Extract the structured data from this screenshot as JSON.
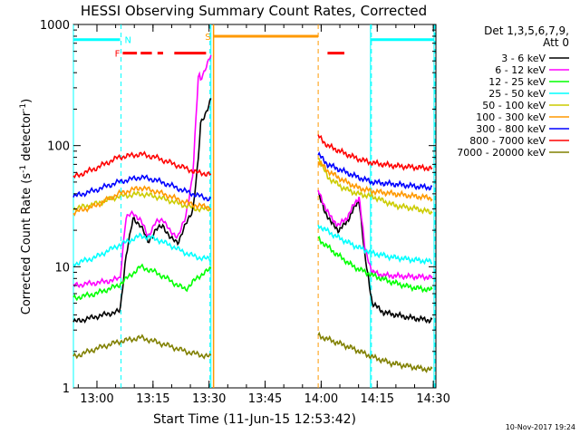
{
  "chart_data": {
    "type": "line",
    "title": "HESSI Observing Summary Count Rates, Corrected",
    "xlabel": "Start Time (11-Jun-15 12:53:42)",
    "ylabel": "Corrected Count Rate (s⁻¹ detector⁻¹)",
    "ylabel_main": "Corrected Count Rate (s",
    "ylabel_sup1": "-1",
    "ylabel_mid": " detector",
    "ylabel_sup2": "-1",
    "ylabel_end": ")",
    "yscale": "log",
    "ylim": [
      1,
      1000
    ],
    "xlim_minutes": [
      0,
      97
    ],
    "x_ticks": [
      "13:00",
      "13:15",
      "13:30",
      "13:45",
      "14:00",
      "14:15",
      "14:30"
    ],
    "x_tick_minutes": [
      6.3,
      21.3,
      36.3,
      51.3,
      66.3,
      81.3,
      96.3
    ],
    "y_ticks": [
      "1",
      "10",
      "100",
      "1000"
    ],
    "y_tick_values": [
      1,
      10,
      100,
      1000
    ],
    "legend_placement": "right",
    "legend_header": [
      "Det 1,3,5,6,7,9,",
      "Att 0"
    ],
    "series": [
      {
        "name": "3 - 6 keV",
        "color": "#000000",
        "segments": [
          {
            "x": [
              0,
              8,
              12.5,
              14,
              16,
              18,
              20,
              22,
              24,
              26,
              28,
              30,
              32,
              33.5,
              34,
              35.5,
              36.8
            ],
            "y": [
              3.5,
              4.0,
              4.3,
              12,
              25,
              22,
              16,
              20,
              22,
              17,
              16,
              22,
              30,
              80,
              150,
              190,
              240
            ]
          },
          {
            "x": [
              65.5,
              67,
              69,
              71,
              73,
              75,
              76.5,
              78,
              80,
              83,
              90,
              96
            ],
            "y": [
              40,
              30,
              23,
              20,
              23,
              30,
              35,
              12,
              5,
              4.2,
              3.8,
              3.6
            ]
          }
        ]
      },
      {
        "name": "6 - 12 keV",
        "color": "#ff00ff",
        "segments": [
          {
            "x": [
              0,
              8,
              12.5,
              14,
              16,
              18,
              20,
              22,
              24,
              26,
              28,
              30,
              32,
              33.5,
              34,
              35.5,
              36.8
            ],
            "y": [
              7,
              7.5,
              8,
              25,
              28,
              24,
              18,
              23,
              25,
              19,
              18,
              25,
              60,
              400,
              350,
              450,
              550
            ]
          },
          {
            "x": [
              65.5,
              67,
              69,
              71,
              73,
              75,
              76.5,
              78,
              80,
              83,
              90,
              96
            ],
            "y": [
              42,
              33,
              25,
              22,
              25,
              32,
              38,
              14,
              9,
              8.5,
              8.3,
              8.2
            ]
          }
        ]
      },
      {
        "name": "12 - 25 keV",
        "color": "#00ff00",
        "segments": [
          {
            "x": [
              0,
              6,
              12,
              18,
              22,
              25,
              28,
              30,
              32,
              35,
              36.8
            ],
            "y": [
              5.5,
              6,
              7,
              10,
              9,
              8,
              7,
              6.5,
              7.5,
              9,
              9.5
            ]
          },
          {
            "x": [
              65.5,
              70,
              75,
              80,
              85,
              90,
              96
            ],
            "y": [
              17,
              13,
              10,
              8.5,
              7.5,
              6.8,
              6.4
            ]
          }
        ]
      },
      {
        "name": "25 - 50 keV",
        "color": "#00ffff",
        "segments": [
          {
            "x": [
              0,
              6,
              12,
              18,
              22,
              26,
              30,
              33,
              36.8
            ],
            "y": [
              10.5,
              12,
              15,
              18,
              17,
              15,
              13,
              12,
              11.5
            ]
          },
          {
            "x": [
              65.5,
              70,
              75,
              80,
              85,
              90,
              96
            ],
            "y": [
              22,
              18,
              15,
              13,
              12,
              11.5,
              11
            ]
          }
        ]
      },
      {
        "name": "50 - 100 keV",
        "color": "#cccc00",
        "segments": [
          {
            "x": [
              0,
              6,
              12,
              18,
              22,
              26,
              30,
              33,
              36.8
            ],
            "y": [
              30,
              33,
              38,
              40,
              38,
              35,
              32,
              30,
              30
            ]
          },
          {
            "x": [
              65.5,
              68,
              72,
              76,
              80,
              86,
              92,
              96
            ],
            "y": [
              80,
              55,
              45,
              40,
              38,
              32,
              30,
              28
            ]
          }
        ]
      },
      {
        "name": "100 - 300 keV",
        "color": "#ff9900",
        "segments": [
          {
            "x": [
              0,
              6,
              12,
              18,
              22,
              26,
              30,
              33,
              36.8
            ],
            "y": [
              28,
              32,
              40,
              45,
              42,
              38,
              34,
              32,
              31
            ]
          },
          {
            "x": [
              65.5,
              68,
              72,
              76,
              80,
              86,
              92,
              96
            ],
            "y": [
              75,
              62,
              52,
              45,
              42,
              40,
              38,
              37
            ]
          }
        ]
      },
      {
        "name": "300 - 800 keV",
        "color": "#0000ff",
        "segments": [
          {
            "x": [
              0,
              6,
              12,
              18,
              22,
              26,
              30,
              33,
              36.8
            ],
            "y": [
              38,
              43,
              50,
              55,
              52,
              47,
              42,
              39,
              36
            ]
          },
          {
            "x": [
              65.5,
              68,
              72,
              76,
              80,
              86,
              92,
              96
            ],
            "y": [
              85,
              70,
              62,
              55,
              50,
              48,
              46,
              45
            ]
          }
        ]
      },
      {
        "name": "800 - 7000 keV",
        "color": "#ff0000",
        "segments": [
          {
            "x": [
              0,
              6,
              12,
              18,
              22,
              26,
              30,
              33,
              36.8
            ],
            "y": [
              55,
              65,
              80,
              85,
              80,
              72,
              65,
              60,
              58
            ]
          },
          {
            "x": [
              65.5,
              68,
              72,
              76,
              80,
              86,
              92,
              96
            ],
            "y": [
              120,
              100,
              88,
              78,
              72,
              68,
              66,
              65
            ]
          }
        ]
      },
      {
        "name": "7000 - 20000 keV",
        "color": "#808000",
        "segments": [
          {
            "x": [
              0,
              6,
              12,
              18,
              22,
              26,
              30,
              33,
              36.8
            ],
            "y": [
              1.8,
              2.1,
              2.4,
              2.6,
              2.4,
              2.2,
              2.0,
              1.9,
              1.8
            ]
          },
          {
            "x": [
              65.5,
              70,
              75,
              80,
              85,
              90,
              96
            ],
            "y": [
              2.7,
              2.4,
              2.1,
              1.8,
              1.6,
              1.5,
              1.4
            ]
          }
        ]
      }
    ],
    "annotations": {
      "N": {
        "label": "N",
        "color": "#00ffff",
        "bars_min": [
          [
            0,
            12.5
          ],
          [
            79.5,
            96.5
          ]
        ],
        "level": 750
      },
      "F": {
        "label": "F",
        "color": "#ff0000",
        "bars_min": [
          [
            13.2,
            17
          ],
          [
            18,
            21
          ],
          [
            22.5,
            24
          ],
          [
            27,
            35.5
          ],
          [
            68,
            72.5
          ]
        ],
        "level": 580
      },
      "S": {
        "label": "S",
        "color": "#ff9900",
        "bars_min": [
          [
            37.5,
            65.5
          ]
        ],
        "level": 800
      },
      "cyan_dashed_min": [
        12.5,
        36.3,
        79.5,
        96.5
      ],
      "cyan_solid_min": [
        0,
        36.8,
        79.5,
        96.5
      ],
      "orange_solid_min": [
        37.5
      ],
      "orange_dashed_min": [
        65.5
      ]
    },
    "grid": false
  },
  "footer_timestamp": "10-Nov-2017 19:24"
}
